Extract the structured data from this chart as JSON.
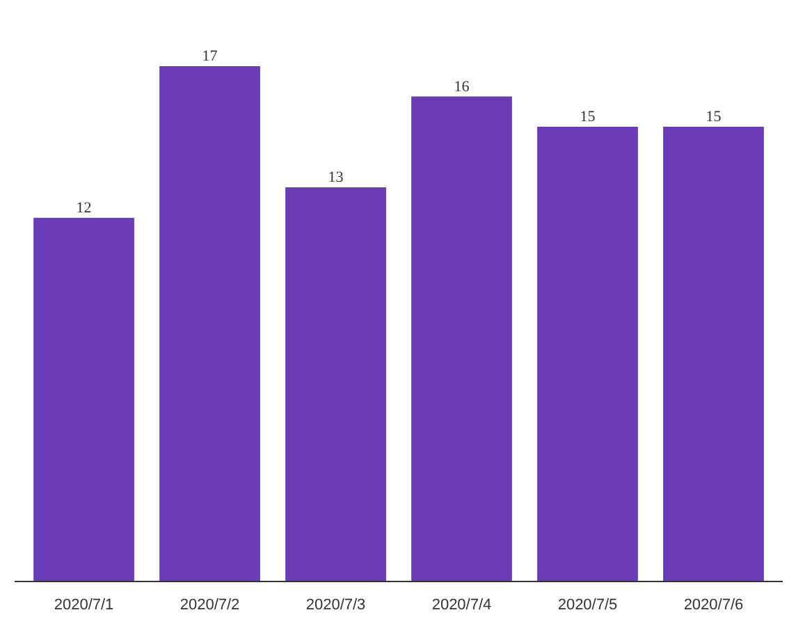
{
  "chart_data": {
    "type": "bar",
    "categories": [
      "2020/7/1",
      "2020/7/2",
      "2020/7/3",
      "2020/7/4",
      "2020/7/5",
      "2020/7/6"
    ],
    "values": [
      12,
      17,
      13,
      16,
      15,
      15
    ],
    "color": "#6a3cb8",
    "data_labels": true,
    "grid": false
  }
}
